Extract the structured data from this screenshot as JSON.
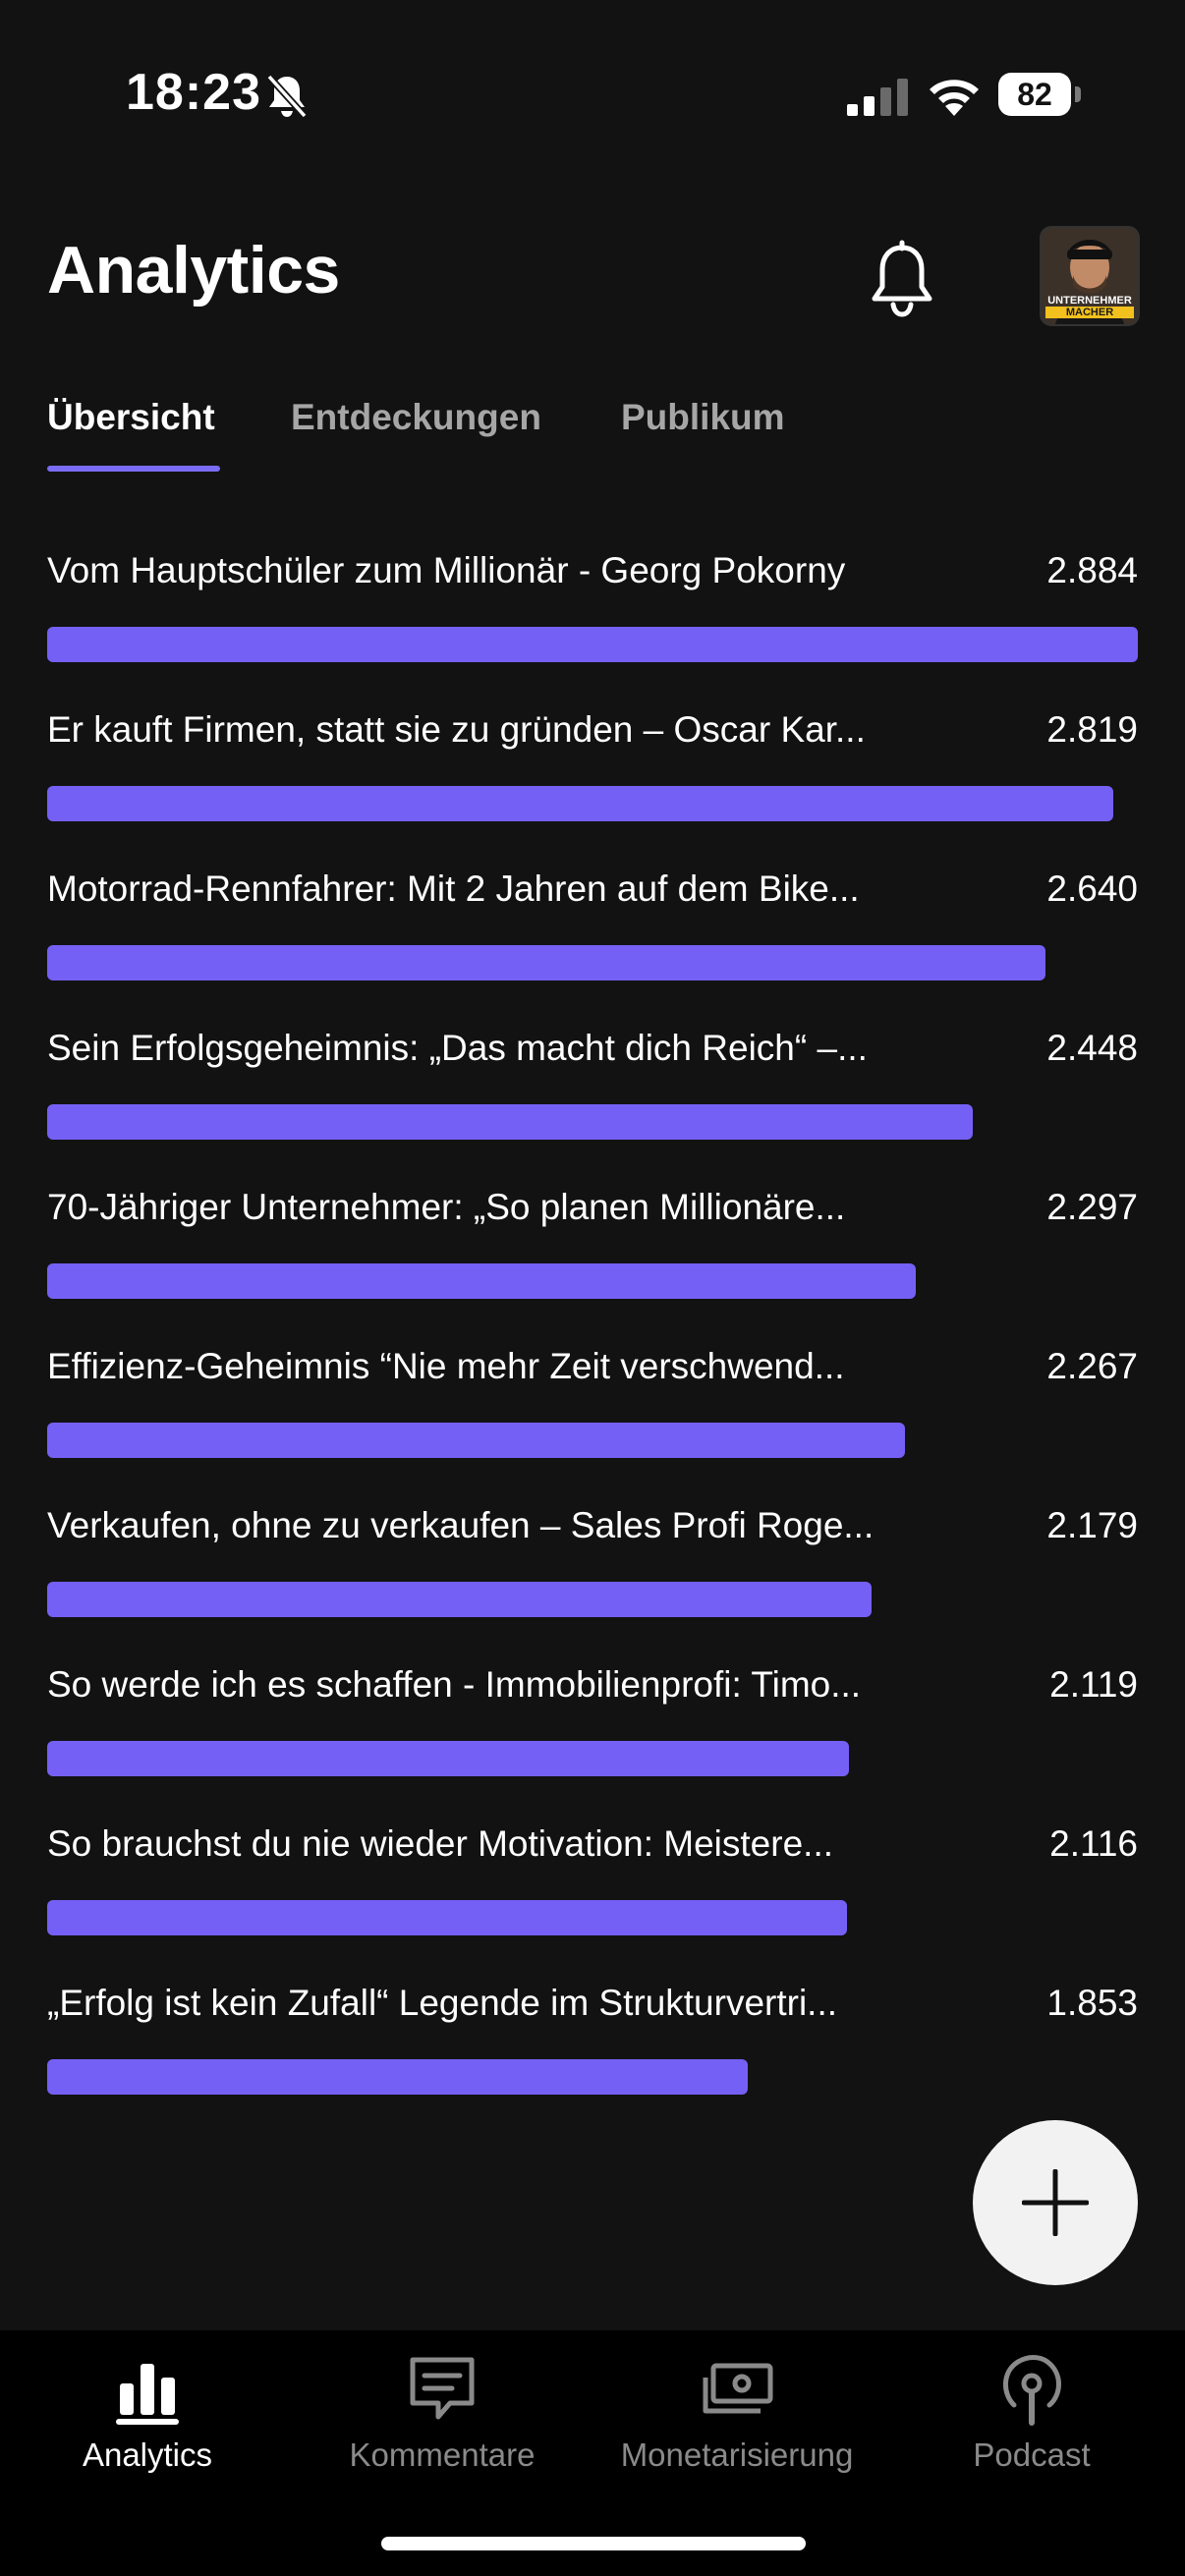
{
  "status_bar": {
    "time": "18:23",
    "battery": "82"
  },
  "header": {
    "title": "Analytics"
  },
  "avatar": {
    "line1": "UNTERNEHMER",
    "line2": "MACHER"
  },
  "tabs": [
    {
      "label": "Übersicht",
      "active": true
    },
    {
      "label": "Entdeckungen",
      "active": false
    },
    {
      "label": "Publikum",
      "active": false
    }
  ],
  "chart_data": {
    "type": "bar",
    "orientation": "horizontal",
    "categories": [
      "Vom Hauptschüler zum Millionär - Georg Pokorny",
      "Er kauft Firmen, statt sie zu gründen – Oscar Kar...",
      "Motorrad-Rennfahrer: Mit 2 Jahren auf dem Bike...",
      "Sein Erfolgsgeheimnis: „Das macht dich Reich“ –...",
      "70-Jähriger Unternehmer: „So planen Millionäre...",
      "Effizienz-Geheimnis “Nie mehr Zeit verschwend...",
      "Verkaufen, ohne zu verkaufen – Sales Profi Roge...",
      "So werde ich es schaffen - Immobilienprofi: Timo...",
      "So brauchst du nie wieder Motivation: Meistere...",
      "„Erfolg ist kein Zufall“ Legende im Strukturvertri..."
    ],
    "values": [
      2884,
      2819,
      2640,
      2448,
      2297,
      2267,
      2179,
      2119,
      2116,
      1853
    ],
    "value_labels": [
      "2.884",
      "2.819",
      "2.640",
      "2.448",
      "2.297",
      "2.267",
      "2.179",
      "2.119",
      "2.116",
      "1.853"
    ],
    "color": "#7560f5"
  },
  "bottom_nav": [
    {
      "label": "Analytics",
      "icon": "bar-chart-icon",
      "active": true
    },
    {
      "label": "Kommentare",
      "icon": "comment-icon",
      "active": false
    },
    {
      "label": "Monetarisierung",
      "icon": "money-icon",
      "active": false
    },
    {
      "label": "Podcast",
      "icon": "podcast-icon",
      "active": false
    }
  ],
  "colors": {
    "background": "#121212",
    "accent": "#7560f5",
    "nav_background": "#000000"
  }
}
